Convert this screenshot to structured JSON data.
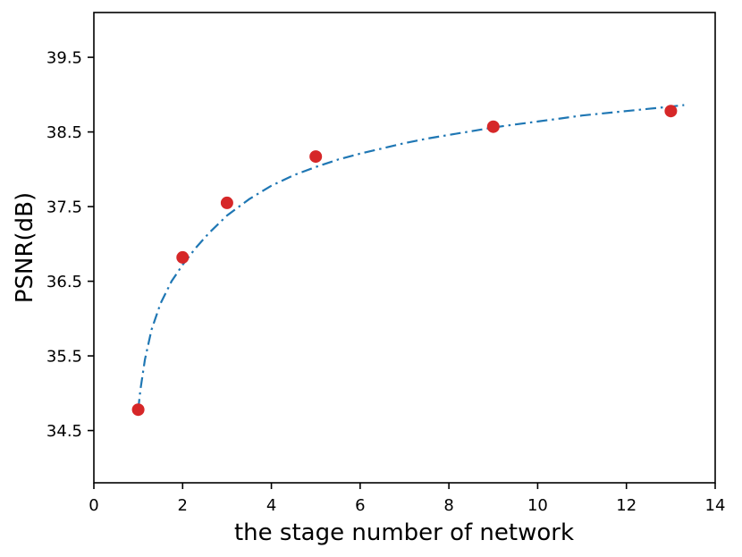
{
  "chart_data": {
    "type": "scatter",
    "title": "",
    "xlabel": "the stage number of network",
    "ylabel": "PSNR(dB)",
    "xlim": [
      0,
      14
    ],
    "ylim": [
      33.8,
      40.1
    ],
    "xticks": [
      0,
      2,
      4,
      6,
      8,
      10,
      12,
      14
    ],
    "yticks": [
      34.5,
      35.5,
      36.5,
      37.5,
      38.5,
      39.5
    ],
    "grid": false,
    "legend": "none",
    "colors": {
      "marker": "#d62728",
      "curve": "#1f77b4",
      "axis": "#000000"
    },
    "points": {
      "x": [
        1,
        2,
        3,
        5,
        9,
        13
      ],
      "y": [
        34.78,
        36.82,
        37.55,
        38.17,
        38.57,
        38.78
      ]
    },
    "fit_curve": {
      "style": "dash-dot",
      "x": [
        1.0,
        1.05,
        1.15,
        1.3,
        1.5,
        1.75,
        2.0,
        2.3,
        2.6,
        3.0,
        3.5,
        4.0,
        4.5,
        5.0,
        5.5,
        6.0,
        6.5,
        7.0,
        7.5,
        8.0,
        8.5,
        9.0,
        9.5,
        10.0,
        10.5,
        11.0,
        11.5,
        12.0,
        12.5,
        13.0,
        13.3
      ],
      "y": [
        34.78,
        35.05,
        35.45,
        35.85,
        36.2,
        36.5,
        36.72,
        36.95,
        37.15,
        37.38,
        37.6,
        37.78,
        37.92,
        38.03,
        38.13,
        38.21,
        38.28,
        38.35,
        38.41,
        38.46,
        38.51,
        38.56,
        38.6,
        38.64,
        38.68,
        38.72,
        38.75,
        38.78,
        38.81,
        38.84,
        38.86
      ]
    }
  }
}
